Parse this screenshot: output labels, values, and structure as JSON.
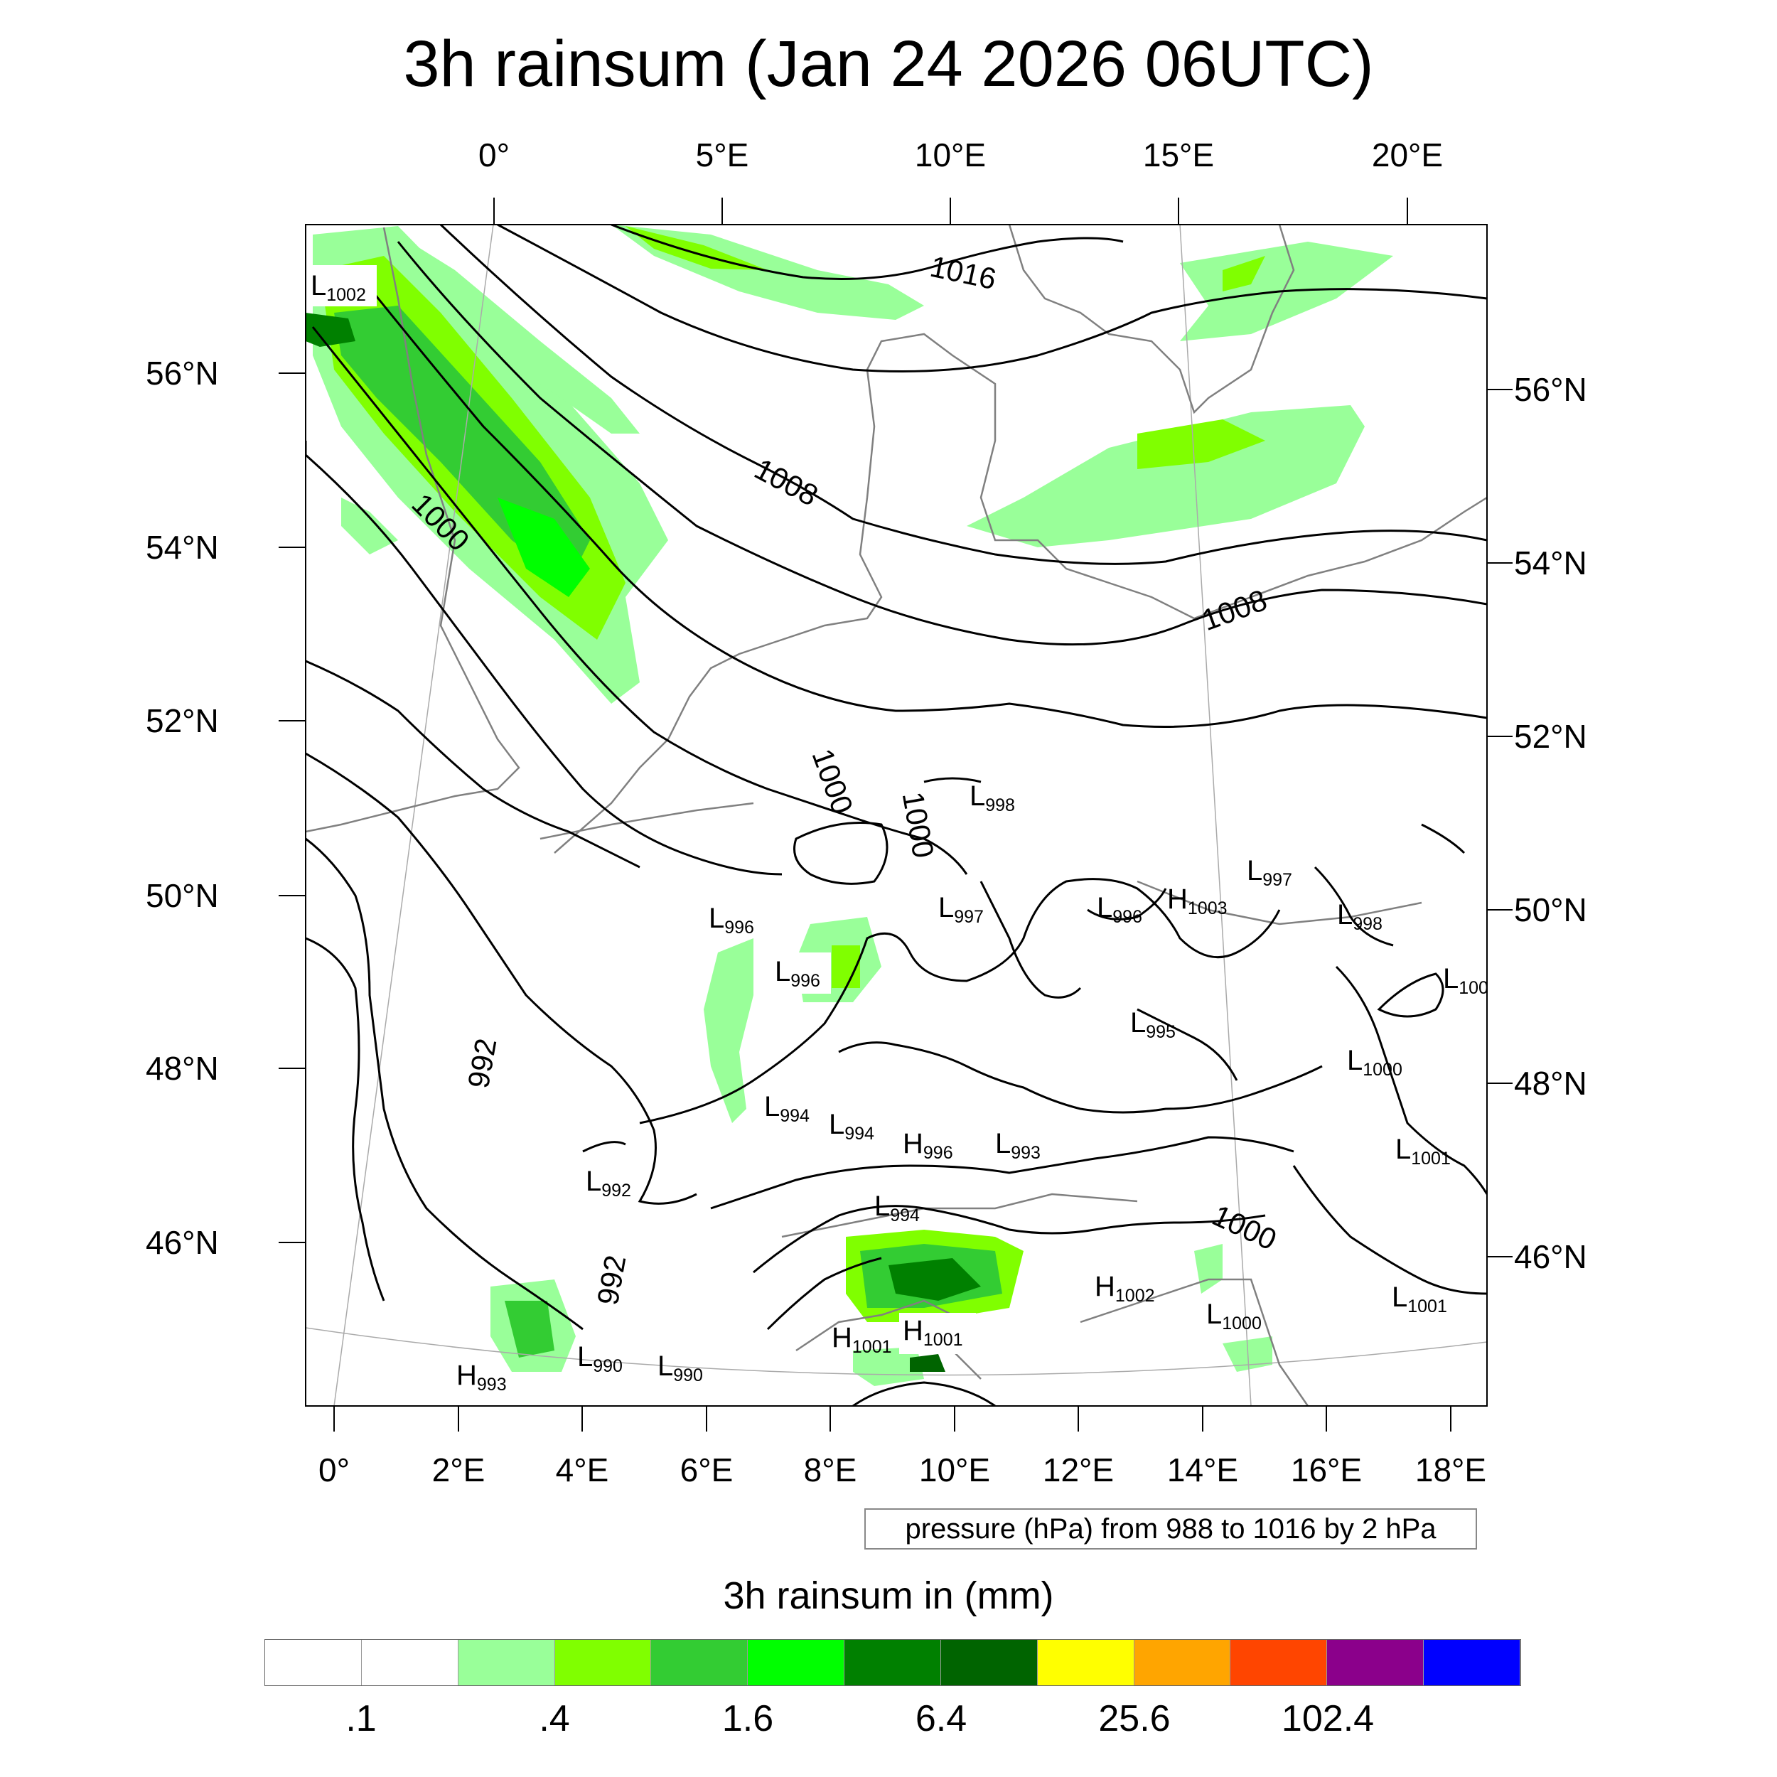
{
  "title": "3h rainsum (Jan 24 2026 06UTC)",
  "top_lon_labels": [
    "0°",
    "5°E",
    "10°E",
    "15°E",
    "20°E"
  ],
  "bottom_lon_labels": [
    "0°",
    "2°E",
    "4°E",
    "6°E",
    "8°E",
    "10°E",
    "12°E",
    "14°E",
    "16°E",
    "18°E"
  ],
  "left_lat_labels": [
    "56°N",
    "54°N",
    "52°N",
    "50°N",
    "48°N",
    "46°N"
  ],
  "right_lat_labels": [
    "56°N",
    "54°N",
    "52°N",
    "50°N",
    "48°N",
    "46°N"
  ],
  "contour_info": "pressure (hPa) from 988 to 1016 by 2 hPa",
  "isobar_labels": [
    "1016",
    "1008",
    "1000",
    "1008",
    "1000",
    "1000",
    "992",
    "992",
    "1000"
  ],
  "pressure_centers": [
    {
      "type": "L",
      "value": "1002"
    },
    {
      "type": "L",
      "value": "998"
    },
    {
      "type": "L",
      "value": "996"
    },
    {
      "type": "L",
      "value": "996"
    },
    {
      "type": "L",
      "value": "997"
    },
    {
      "type": "L",
      "value": "996"
    },
    {
      "type": "H",
      "value": "1003"
    },
    {
      "type": "L",
      "value": "997"
    },
    {
      "type": "L",
      "value": "998"
    },
    {
      "type": "L",
      "value": "100"
    },
    {
      "type": "L",
      "value": "995"
    },
    {
      "type": "L",
      "value": "1000"
    },
    {
      "type": "L",
      "value": "994"
    },
    {
      "type": "L",
      "value": "994"
    },
    {
      "type": "H",
      "value": "996"
    },
    {
      "type": "L",
      "value": "993"
    },
    {
      "type": "L",
      "value": "1001"
    },
    {
      "type": "L",
      "value": "992"
    },
    {
      "type": "L",
      "value": "994"
    },
    {
      "type": "H",
      "value": "1002"
    },
    {
      "type": "L",
      "value": "1001"
    },
    {
      "type": "L",
      "value": "1000"
    },
    {
      "type": "H",
      "value": "1001"
    },
    {
      "type": "H",
      "value": "1001"
    },
    {
      "type": "L",
      "value": "990"
    },
    {
      "type": "L",
      "value": "990"
    },
    {
      "type": "H",
      "value": "993"
    }
  ],
  "colorbar": {
    "title": "3h rainsum in (mm)",
    "labels": [
      ".1",
      ".4",
      "1.6",
      "6.4",
      "25.6",
      "102.4"
    ],
    "colors": [
      "#ffffff",
      "#ffffff",
      "#99ff99",
      "#80ff00",
      "#33cc33",
      "#00ff00",
      "#008000",
      "#006400",
      "#ffff00",
      "#ffa500",
      "#ff4500",
      "#8b008b",
      "#0000ff"
    ]
  }
}
